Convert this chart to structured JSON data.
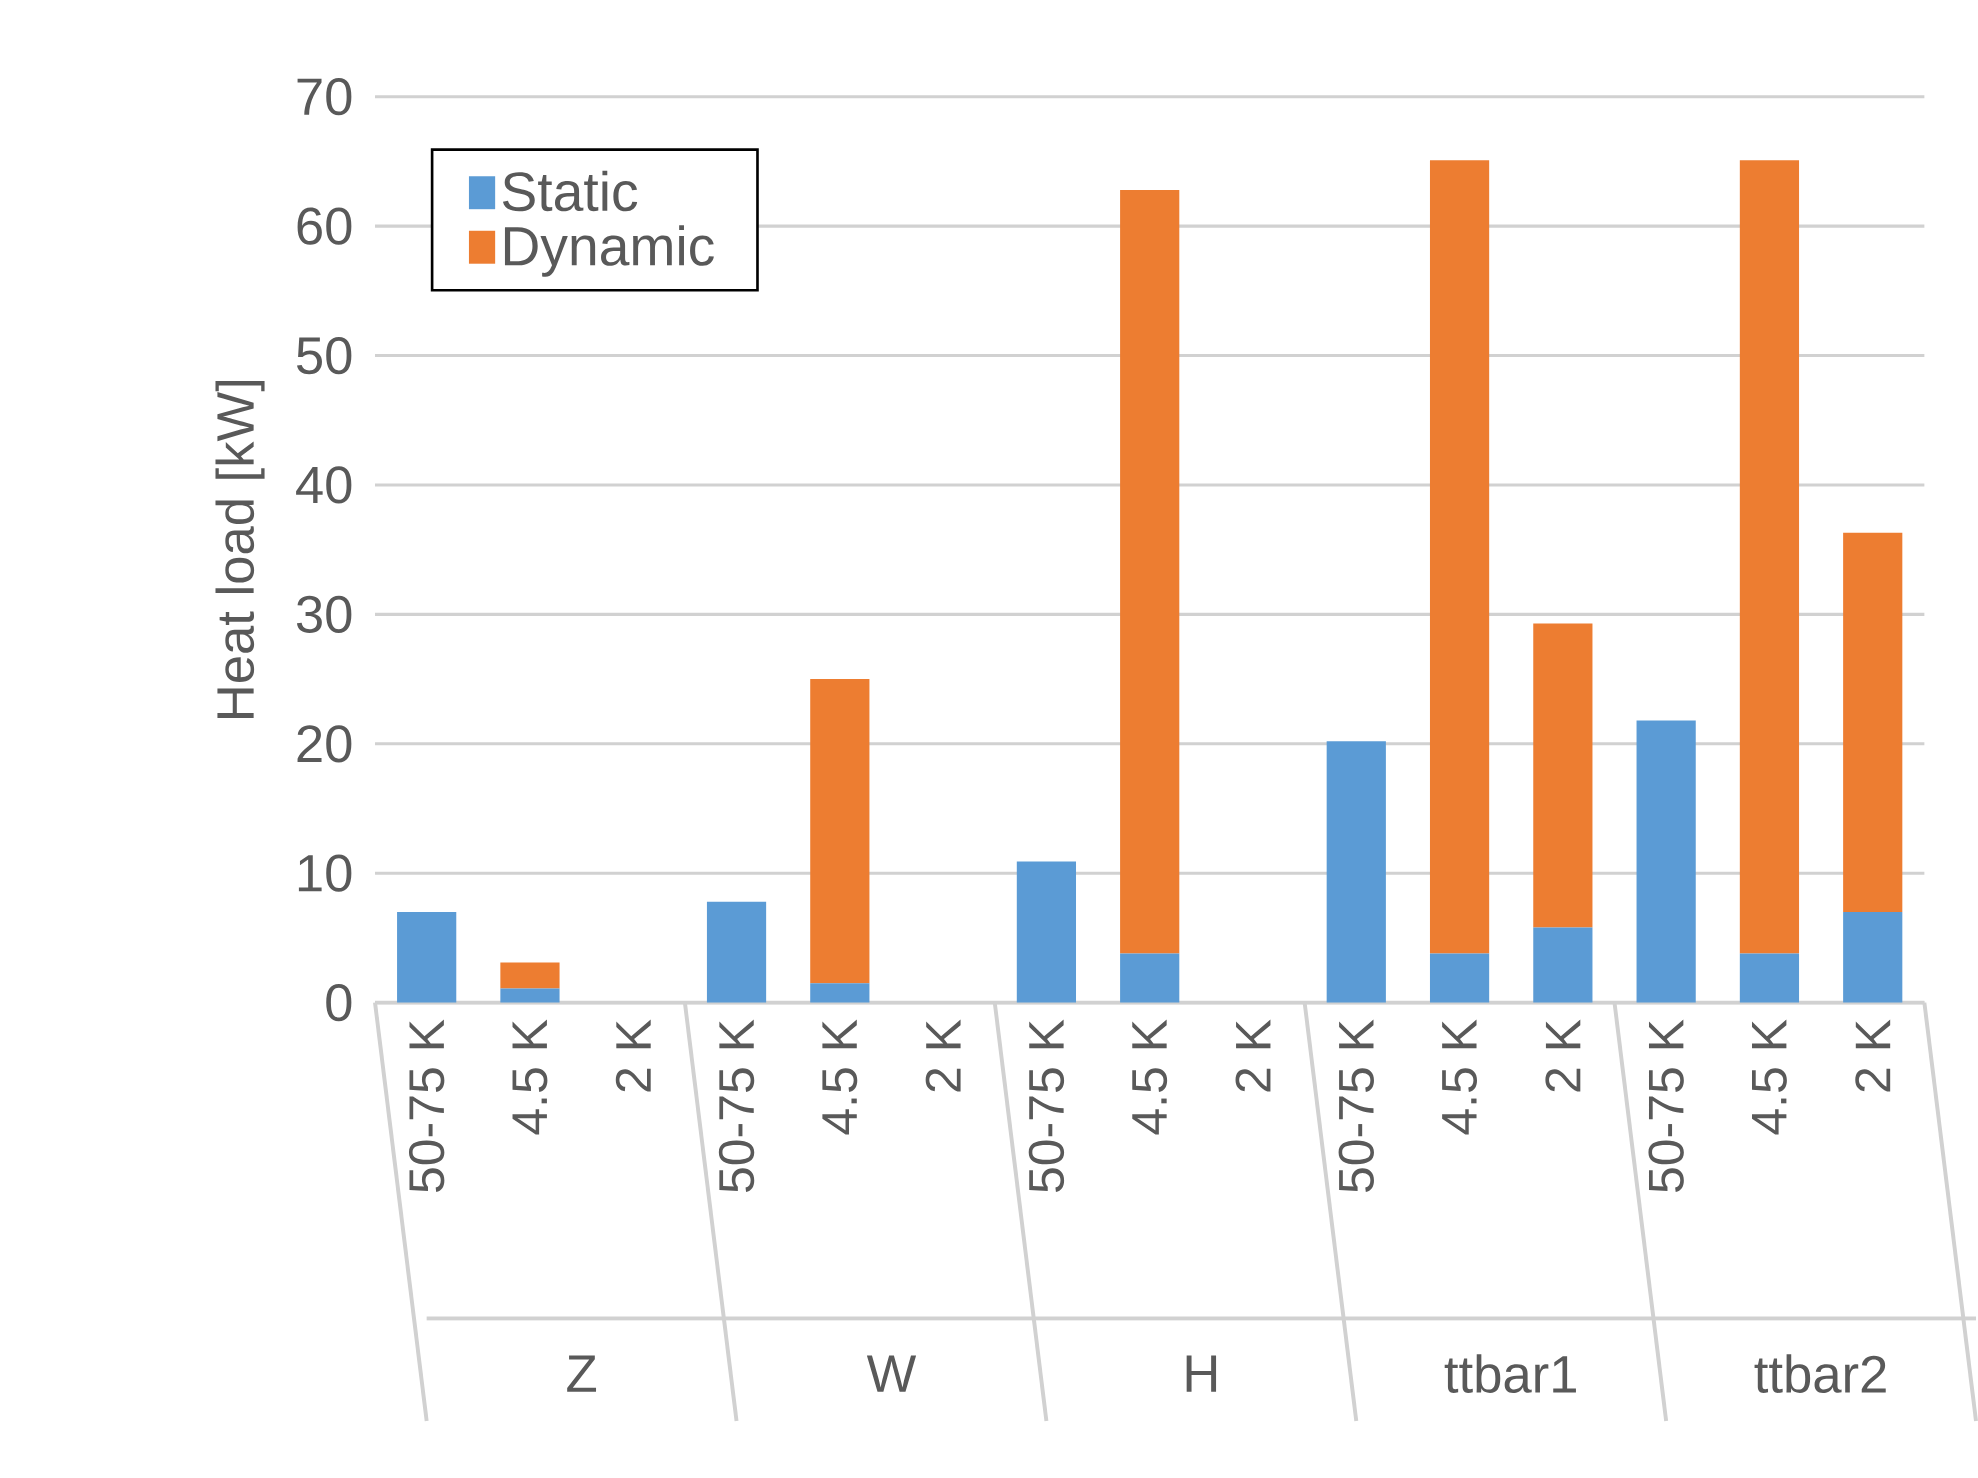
{
  "chart_data": {
    "type": "bar",
    "stacked": true,
    "ylabel": "Heat load [kW]",
    "categories": [
      "50-75 K",
      "4.5 K",
      "2 K",
      "50-75 K",
      "4.5 K",
      "2 K",
      "50-75 K",
      "4.5 K",
      "2 K",
      "50-75 K",
      "4.5 K",
      "2 K",
      "50-75 K",
      "4.5 K",
      "2 K"
    ],
    "series": [
      {
        "name": "Static",
        "color": "#5b9bd5",
        "values": [
          7.0,
          1.1,
          null,
          7.8,
          1.5,
          null,
          10.9,
          3.8,
          null,
          20.2,
          3.8,
          5.8,
          21.8,
          3.8,
          7.0
        ]
      },
      {
        "name": "Dynamic",
        "color": "#ed7d31",
        "values": [
          null,
          2.0,
          null,
          null,
          23.5,
          null,
          null,
          59.0,
          null,
          null,
          61.3,
          23.5,
          null,
          61.3,
          29.3
        ]
      }
    ],
    "annotations": [
      "Z",
      "W",
      "H",
      "ttbar1",
      "ttbar2"
    ],
    "ylim": [
      0,
      70
    ],
    "yticks": [
      0,
      10,
      20,
      30,
      40,
      50,
      60,
      70
    ],
    "grid": "y",
    "legend": "top left"
  }
}
